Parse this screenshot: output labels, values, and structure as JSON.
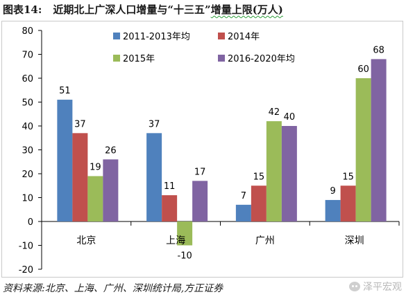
{
  "header": {
    "figure_label": "图表14:",
    "title_main": "近期北上广深人口增量与“十三五”",
    "title_tail": "增量上限(万人)"
  },
  "footer": {
    "source": "资料来源:北京、上海、广州、深圳统计局,方正证券",
    "watermark": "泽平宏观"
  },
  "chart_data": {
    "type": "bar",
    "categories": [
      "北京",
      "上海",
      "广州",
      "深圳"
    ],
    "series": [
      {
        "name": "2011-2013年均",
        "color": "#4f81bd",
        "values": [
          51,
          37,
          7,
          9
        ]
      },
      {
        "name": "2014年",
        "color": "#c0504d",
        "values": [
          37,
          11,
          15,
          15
        ]
      },
      {
        "name": "2015年",
        "color": "#9bbb59",
        "values": [
          19,
          -10,
          42,
          60
        ]
      },
      {
        "name": "2016-2020年均",
        "color": "#8064a2",
        "values": [
          26,
          17,
          40,
          68
        ]
      }
    ],
    "ylim": [
      -20,
      80
    ],
    "yticks": [
      -20,
      -10,
      0,
      10,
      20,
      30,
      40,
      50,
      60,
      70,
      80
    ],
    "legend_position": "top",
    "grid": false
  }
}
